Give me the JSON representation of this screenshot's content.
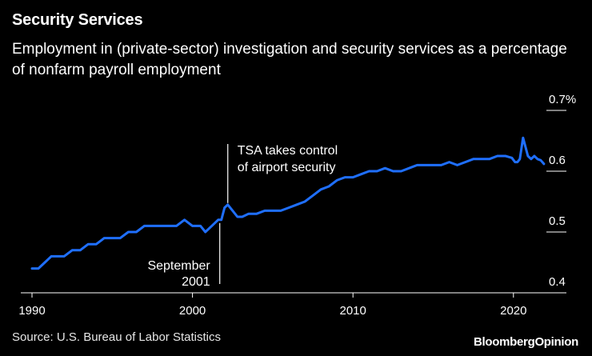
{
  "title": "Security Services",
  "subtitle": "Employment in (private-sector) investigation and security services as a percentage of nonfarm payroll employment",
  "source": "Source: U.S. Bureau of Labor Statistics",
  "brand": {
    "part1": "Bloomberg",
    "part2": "Opinion"
  },
  "colors": {
    "background": "#000000",
    "line": "#1f6fff",
    "text": "#ffffff",
    "axis": "#ffffff"
  },
  "chart_data": {
    "type": "line",
    "title": "Security Services",
    "xlabel": "",
    "ylabel": "",
    "xlim": [
      1989.8,
      2023.4
    ],
    "ylim": [
      0.4,
      0.7
    ],
    "x_ticks": [
      1990,
      2000,
      2010,
      2020
    ],
    "x_tick_labels": [
      "1990",
      "2000",
      "2010",
      "2020"
    ],
    "y_ticks": [
      0.4,
      0.5,
      0.6,
      0.7
    ],
    "y_tick_labels": [
      "0.4",
      "0.5",
      "0.6",
      "0.7%"
    ],
    "grid": false,
    "y_axis_side": "right",
    "series": [
      {
        "x": [
          1990.0,
          1990.4,
          1990.8,
          1991.2,
          1991.6,
          1992.0,
          1992.5,
          1993.0,
          1993.5,
          1994.0,
          1994.5,
          1995.0,
          1995.5,
          1996.0,
          1996.5,
          1997.0,
          1997.5,
          1998.0,
          1998.5,
          1999.0,
          1999.5,
          2000.0,
          2000.5,
          2000.8,
          2001.2,
          2001.6,
          2001.8,
          2002.0,
          2002.2,
          2002.5,
          2002.8,
          2003.1,
          2003.5,
          2004.0,
          2004.5,
          2005.0,
          2005.5,
          2006.0,
          2006.5,
          2007.0,
          2007.5,
          2008.0,
          2008.5,
          2009.0,
          2009.5,
          2010.0,
          2010.5,
          2011.0,
          2011.5,
          2012.0,
          2012.5,
          2013.0,
          2013.5,
          2014.0,
          2014.5,
          2015.0,
          2015.5,
          2016.0,
          2016.5,
          2017.0,
          2017.5,
          2018.0,
          2018.5,
          2019.0,
          2019.5,
          2019.9,
          2020.1,
          2020.25,
          2020.4,
          2020.6,
          2020.9,
          2021.1,
          2021.3,
          2021.5,
          2021.7,
          2021.9
        ],
        "y": [
          0.44,
          0.44,
          0.45,
          0.46,
          0.46,
          0.46,
          0.47,
          0.47,
          0.48,
          0.48,
          0.49,
          0.49,
          0.49,
          0.5,
          0.5,
          0.51,
          0.51,
          0.51,
          0.51,
          0.51,
          0.52,
          0.51,
          0.51,
          0.5,
          0.51,
          0.52,
          0.52,
          0.54,
          0.545,
          0.535,
          0.525,
          0.525,
          0.53,
          0.53,
          0.535,
          0.535,
          0.535,
          0.54,
          0.545,
          0.55,
          0.56,
          0.57,
          0.575,
          0.585,
          0.59,
          0.59,
          0.595,
          0.6,
          0.6,
          0.605,
          0.6,
          0.6,
          0.605,
          0.61,
          0.61,
          0.61,
          0.61,
          0.615,
          0.61,
          0.615,
          0.62,
          0.62,
          0.62,
          0.625,
          0.625,
          0.622,
          0.615,
          0.615,
          0.62,
          0.655,
          0.625,
          0.62,
          0.625,
          0.62,
          0.618,
          0.612
        ]
      }
    ],
    "annotations": [
      {
        "text": "TSA takes control of airport security",
        "lines": [
          "TSA takes control",
          "of airport security"
        ],
        "x": 2002.2,
        "y": 0.545
      },
      {
        "text": "September 2001",
        "lines": [
          "September",
          "2001"
        ],
        "x": 2001.7,
        "y": 0.52
      }
    ]
  }
}
